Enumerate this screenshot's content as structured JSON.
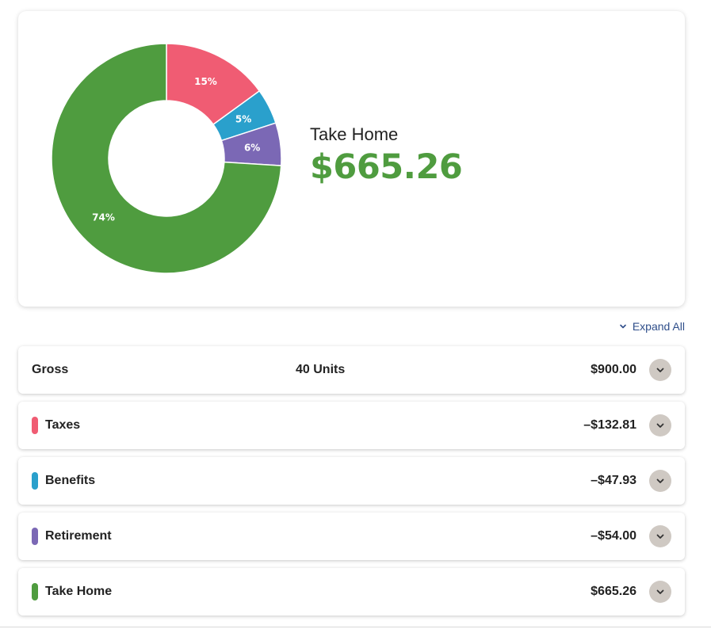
{
  "summary": {
    "title": "Take Home",
    "amount": "$665.26"
  },
  "chart_data": {
    "type": "pie",
    "categories": [
      "Taxes",
      "Benefits",
      "Retirement",
      "Take Home"
    ],
    "values": [
      15,
      5,
      6,
      74
    ],
    "labels": [
      "15%",
      "5%",
      "6%",
      "74%"
    ],
    "colors": [
      "#f05c73",
      "#2aa0cc",
      "#7b68b5",
      "#4f9c3f"
    ]
  },
  "expand_all": {
    "label": "Expand All",
    "icon": "chevron-down-icon"
  },
  "rows": [
    {
      "label": "Gross",
      "units": "40 Units",
      "amount": "$900.00",
      "color": ""
    },
    {
      "label": "Taxes",
      "units": "",
      "amount": "–$132.81",
      "color": "#f05c73"
    },
    {
      "label": "Benefits",
      "units": "",
      "amount": "–$47.93",
      "color": "#2aa0cc"
    },
    {
      "label": "Retirement",
      "units": "",
      "amount": "–$54.00",
      "color": "#7b68b5"
    },
    {
      "label": "Take Home",
      "units": "",
      "amount": "$665.26",
      "color": "#4f9c3f"
    }
  ]
}
